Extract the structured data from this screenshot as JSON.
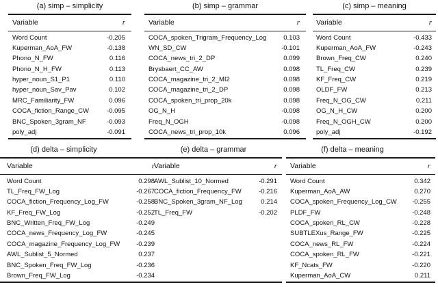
{
  "figure": {
    "description_colors": {
      "text": "#111111",
      "rule": "#1a1a1a",
      "background": "#ffffff"
    }
  },
  "tables": [
    {
      "id": "a",
      "title": "(a) simp – simplicity",
      "col_variable": "Variable",
      "col_r": "r",
      "rows": [
        {
          "variable": "Word Count",
          "r": "-0.205"
        },
        {
          "variable": "Kuperman_AoA_FW",
          "r": "-0.138"
        },
        {
          "variable": "Phono_N_FW",
          "r": "0.116"
        },
        {
          "variable": "Phono_N_H_FW",
          "r": "0.113"
        },
        {
          "variable": "hyper_noun_S1_P1",
          "r": "0.110"
        },
        {
          "variable": "hyper_noun_Sav_Pav",
          "r": "0.102"
        },
        {
          "variable": "MRC_Familiarity_FW",
          "r": "0.096"
        },
        {
          "variable": "COCA_fiction_Range_CW",
          "r": "-0.095"
        },
        {
          "variable": "BNC_Spoken_3gram_NF",
          "r": "-0.093"
        },
        {
          "variable": "poly_adj",
          "r": "-0.091"
        }
      ]
    },
    {
      "id": "b",
      "title": "(b) simp – grammar",
      "col_variable": "Variable",
      "col_r": "r",
      "rows": [
        {
          "variable": "COCA_spoken_Trigram_Frequency_Log",
          "r": "0.103"
        },
        {
          "variable": "WN_SD_CW",
          "r": "-0.101"
        },
        {
          "variable": "COCA_news_tri_2_DP",
          "r": "0.099"
        },
        {
          "variable": "Brysbaert_CC_AW",
          "r": "0.098"
        },
        {
          "variable": "COCA_magazine_tri_2_MI2",
          "r": "0.098"
        },
        {
          "variable": "COCA_magazine_tri_2_DP",
          "r": "0.098"
        },
        {
          "variable": "COCA_spoken_tri_prop_20k",
          "r": "0.098"
        },
        {
          "variable": "OG_N_H",
          "r": "-0.098"
        },
        {
          "variable": "Freq_N_OGH",
          "r": "-0.098"
        },
        {
          "variable": "COCA_news_tri_prop_10k",
          "r": "0.096"
        }
      ]
    },
    {
      "id": "c",
      "title": "(c) simp – meaning",
      "col_variable": "Variable",
      "col_r": "r",
      "rows": [
        {
          "variable": "Word Count",
          "r": "-0.433"
        },
        {
          "variable": "Kuperman_AoA_FW",
          "r": "-0.243"
        },
        {
          "variable": "Brown_Freq_CW",
          "r": "0.240"
        },
        {
          "variable": "TL_Freq_CW",
          "r": "0.239"
        },
        {
          "variable": "KF_Freq_CW",
          "r": "0.219"
        },
        {
          "variable": "OLDF_FW",
          "r": "0.213"
        },
        {
          "variable": "Freq_N_OG_CW",
          "r": "0.211"
        },
        {
          "variable": "OG_N_H_CW",
          "r": "0.200"
        },
        {
          "variable": "Freq_N_OGH_CW",
          "r": "0.200"
        },
        {
          "variable": "poly_adj",
          "r": "-0.192"
        }
      ]
    },
    {
      "id": "d",
      "title": "(d) delta – simplicity",
      "col_variable": "Variable",
      "col_r": "r",
      "rows": [
        {
          "variable": "Word Count",
          "r": "0.298"
        },
        {
          "variable": "TL_Freq_FW_Log",
          "r": "-0.267"
        },
        {
          "variable": "COCA_fiction_Frequency_Log_FW",
          "r": "-0.258"
        },
        {
          "variable": "KF_Freq_FW_Log",
          "r": "-0.252"
        },
        {
          "variable": "BNC_Written_Freq_FW_Log",
          "r": "-0.249"
        },
        {
          "variable": "COCA_news_Frequency_Log_FW",
          "r": "-0.245"
        },
        {
          "variable": "COCA_magazine_Frequency_Log_FW",
          "r": "-0.239"
        },
        {
          "variable": "AWL_Sublist_5_Normed",
          "r": "0.237"
        },
        {
          "variable": "BNC_Spoken_Freq_FW_Log",
          "r": "-0.236"
        },
        {
          "variable": "Brown_Freq_FW_Log",
          "r": "-0.234"
        }
      ]
    },
    {
      "id": "e",
      "title": "(e) delta – grammar",
      "col_variable": "Variable",
      "col_r": "r",
      "rows": [
        {
          "variable": "AWL_Sublist_10_Normed",
          "r": "-0.291"
        },
        {
          "variable": "COCA_fiction_Frequency_FW",
          "r": "-0.216"
        },
        {
          "variable": "BNC_Spoken_3gram_NF_Log",
          "r": "0.214"
        },
        {
          "variable": "TL_Freq_FW",
          "r": "-0.202"
        }
      ]
    },
    {
      "id": "f",
      "title": "(f) delta – meaning",
      "col_variable": "Variable",
      "col_r": "r",
      "rows": [
        {
          "variable": "Word Count",
          "r": "0.342"
        },
        {
          "variable": "Kuperman_AoA_AW",
          "r": "0.270"
        },
        {
          "variable": "COCA_spoken_Frequency_Log_CW",
          "r": "-0.255"
        },
        {
          "variable": "PLDF_FW",
          "r": "-0.248"
        },
        {
          "variable": "COCA_spoken_RL_CW",
          "r": "-0.228"
        },
        {
          "variable": "SUBTLEXus_Range_FW",
          "r": "-0.225"
        },
        {
          "variable": "COCA_news_RL_FW",
          "r": "-0.224"
        },
        {
          "variable": "COCA_spoken_RL_FW",
          "r": "-0.221"
        },
        {
          "variable": "KF_Ncats_FW",
          "r": "-0.220"
        },
        {
          "variable": "Kuperman_AoA_CW",
          "r": "0.211"
        }
      ]
    }
  ]
}
